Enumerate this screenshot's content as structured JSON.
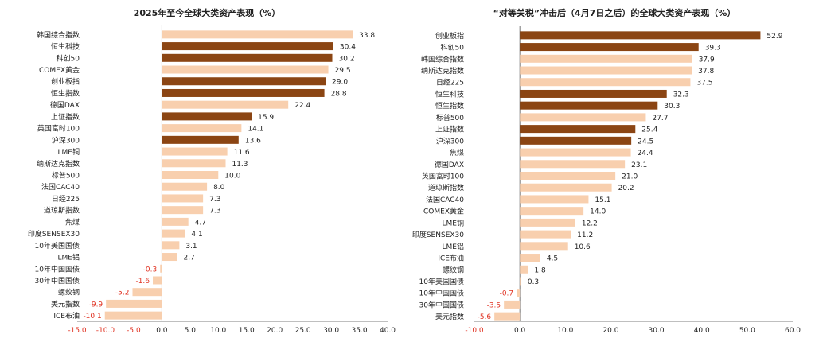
{
  "colors": {
    "dark": "#8B4513",
    "light": "#F8CFAE",
    "negative_label": "#E03020",
    "text": "#222222",
    "axis": "#555555"
  },
  "chart_data": [
    {
      "type": "bar",
      "orientation": "horizontal",
      "title": "2025年至今全球大类资产表现（%）",
      "xlim": [
        -15,
        40
      ],
      "xticks": [
        -15,
        -10,
        -5,
        0,
        5,
        10,
        15,
        20,
        25,
        30,
        35,
        40
      ],
      "xtick_labels": [
        "-15.0",
        "-10.0",
        "-5.0",
        "0.0",
        "5.0",
        "10.0",
        "15.0",
        "20.0",
        "25.0",
        "30.0",
        "35.0",
        "40.0"
      ],
      "categories": [
        "韩国综合指数",
        "恒生科技",
        "科创50",
        "COMEX黄金",
        "创业板指",
        "恒生指数",
        "德国DAX",
        "上证指数",
        "英国富时100",
        "沪深300",
        "LME铜",
        "纳斯达克指数",
        "标普500",
        "法国CAC40",
        "日经225",
        "道琼斯指数",
        "焦煤",
        "印度SENSEX30",
        "10年美国国债",
        "LME铝",
        "10年中国国债",
        "30年中国国债",
        "螺纹钢",
        "美元指数",
        "ICE布油"
      ],
      "values": [
        33.8,
        30.4,
        30.2,
        29.5,
        29.0,
        28.8,
        22.4,
        15.9,
        14.1,
        13.6,
        11.6,
        11.3,
        10.0,
        8.0,
        7.3,
        7.3,
        4.7,
        4.1,
        3.1,
        2.7,
        -0.3,
        -1.6,
        -5.2,
        -9.9,
        -10.1
      ],
      "labels": [
        "33.8",
        "30.4",
        "30.2",
        "29.5",
        "29.0",
        "28.8",
        "22.4",
        "15.9",
        "14.1",
        "13.6",
        "11.6",
        "11.3",
        "10.0",
        "8.0",
        "7.3",
        "7.3",
        "4.7",
        "4.1",
        "3.1",
        "2.7",
        "-0.3",
        "-1.6",
        "-5.2",
        "-9.9",
        "-10.1"
      ],
      "highlight": [
        false,
        true,
        true,
        false,
        true,
        true,
        false,
        true,
        false,
        true,
        false,
        false,
        false,
        false,
        false,
        false,
        false,
        false,
        false,
        false,
        false,
        false,
        false,
        false,
        false
      ]
    },
    {
      "type": "bar",
      "orientation": "horizontal",
      "title": "“对等关税”冲击后（4月7日之后）的全球大类资产表现（%）",
      "xlim": [
        -10,
        60
      ],
      "xticks": [
        -10,
        0,
        10,
        20,
        30,
        40,
        50,
        60
      ],
      "xtick_labels": [
        "-10.0",
        "0.0",
        "10.0",
        "20.0",
        "30.0",
        "40.0",
        "50.0",
        "60.0"
      ],
      "categories": [
        "创业板指",
        "科创50",
        "韩国综合指数",
        "纳斯达克指数",
        "日经225",
        "恒生科技",
        "恒生指数",
        "标普500",
        "上证指数",
        "沪深300",
        "焦煤",
        "德国DAX",
        "英国富时100",
        "道琼斯指数",
        "法国CAC40",
        "COMEX黄金",
        "LME铜",
        "印度SENSEX30",
        "LME铝",
        "ICE布油",
        "螺纹钢",
        "10年美国国债",
        "10年中国国债",
        "30年中国国债",
        "美元指数"
      ],
      "values": [
        52.9,
        39.3,
        37.9,
        37.8,
        37.5,
        32.3,
        30.3,
        27.7,
        25.4,
        24.5,
        24.4,
        23.1,
        21.0,
        20.2,
        15.1,
        14.0,
        12.2,
        11.2,
        10.6,
        4.5,
        1.8,
        0.3,
        -0.7,
        -3.5,
        -5.6
      ],
      "labels": [
        "52.9",
        "39.3",
        "37.9",
        "37.8",
        "37.5",
        "32.3",
        "30.3",
        "27.7",
        "25.4",
        "24.5",
        "24.4",
        "23.1",
        "21.0",
        "20.2",
        "15.1",
        "14.0",
        "12.2",
        "11.2",
        "10.6",
        "4.5",
        "1.8",
        "0.3",
        "-0.7",
        "-3.5",
        "-5.6"
      ],
      "highlight": [
        true,
        true,
        false,
        false,
        false,
        true,
        true,
        false,
        true,
        true,
        false,
        false,
        false,
        false,
        false,
        false,
        false,
        false,
        false,
        false,
        false,
        false,
        false,
        false,
        false
      ]
    }
  ]
}
